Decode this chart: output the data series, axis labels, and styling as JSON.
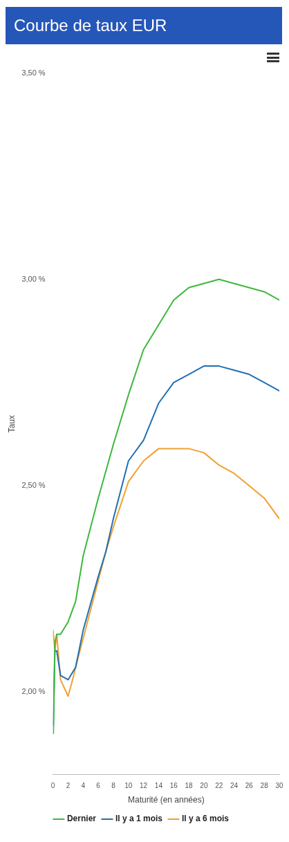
{
  "chart_data": {
    "type": "line",
    "title": "Courbe de taux EUR",
    "xlabel": "Maturité (en années)",
    "ylabel": "Taux",
    "xlim": [
      0,
      30
    ],
    "xticks": [
      0,
      2,
      4,
      6,
      8,
      10,
      12,
      14,
      16,
      18,
      20,
      22,
      24,
      26,
      28,
      30
    ],
    "ylim": [
      1.8,
      3.5
    ],
    "yticks": [
      {
        "value": 2,
        "label": "2,00 %"
      },
      {
        "value": 2.5,
        "label": "2,50 %"
      },
      {
        "value": 3,
        "label": "3,00 %"
      },
      {
        "value": 3.5,
        "label": "3,50 %"
      }
    ],
    "legend": "bottom",
    "marker": "none",
    "line_style": "solid",
    "grid": false,
    "series": [
      {
        "name": "Dernier",
        "color": "#3cb83c",
        "x": [
          0.05,
          0.25,
          0.5,
          1,
          2,
          3,
          4,
          6,
          8,
          10,
          12,
          14,
          16,
          18,
          20,
          22,
          24,
          26,
          28,
          30
        ],
        "values": [
          1.9,
          2.12,
          2.14,
          2.14,
          2.17,
          2.22,
          2.33,
          2.47,
          2.6,
          2.72,
          2.83,
          2.89,
          2.95,
          2.98,
          2.99,
          3.0,
          2.99,
          2.98,
          2.97,
          2.95
        ]
      },
      {
        "name": "Il y a 1 mois",
        "color": "#1f6fb5",
        "x": [
          0.05,
          0.25,
          0.5,
          1,
          2,
          3,
          4,
          6,
          7,
          8,
          10,
          12,
          14,
          16,
          18,
          20,
          22,
          24,
          26,
          28,
          30
        ],
        "values": [
          1.92,
          2.1,
          2.1,
          2.04,
          2.03,
          2.06,
          2.15,
          2.28,
          2.34,
          2.42,
          2.56,
          2.61,
          2.7,
          2.75,
          2.77,
          2.79,
          2.79,
          2.78,
          2.77,
          2.75,
          2.73
        ]
      },
      {
        "name": "Il y a 6 mois",
        "color": "#f0a030",
        "x": [
          0,
          0.25,
          0.5,
          1,
          2,
          2.6,
          3,
          7,
          8,
          10,
          12,
          14,
          16,
          18,
          20,
          22,
          24,
          26,
          28,
          30
        ],
        "values": [
          2.15,
          2.1,
          2.14,
          2.03,
          1.99,
          2.03,
          2.06,
          2.34,
          2.4,
          2.51,
          2.56,
          2.59,
          2.59,
          2.59,
          2.58,
          2.55,
          2.53,
          2.5,
          2.47,
          2.42
        ]
      }
    ]
  }
}
